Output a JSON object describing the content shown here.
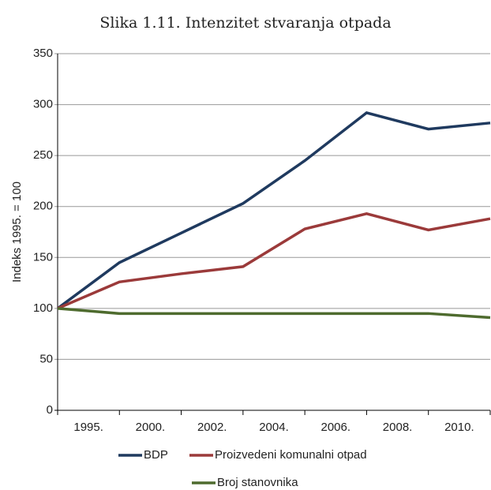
{
  "chart_data": {
    "type": "line",
    "title": "Slika 1.11. Intenzitet stvaranja otpada",
    "y_label": "Indeks 1995. = 100",
    "categories": [
      "1995.",
      "2000.",
      "2002.",
      "2004.",
      "2006.",
      "2008.",
      "2010.",
      null
    ],
    "series": [
      {
        "name": "BDP",
        "color": "#1f3a5f",
        "values": [
          100,
          145,
          174,
          203,
          245,
          292,
          276,
          282
        ]
      },
      {
        "name": "Proizvedeni komunalni otpad",
        "color": "#9b3a3a",
        "values": [
          100,
          126,
          134,
          141,
          178,
          193,
          177,
          188
        ]
      },
      {
        "name": "Broj stanovnika",
        "color": "#4e6b2e",
        "values": [
          100,
          95,
          95,
          95,
          95,
          95,
          95,
          91
        ]
      }
    ],
    "ylim": [
      0,
      350
    ],
    "yticks": [
      0,
      50,
      100,
      150,
      200,
      250,
      300,
      350
    ],
    "grid": true
  }
}
